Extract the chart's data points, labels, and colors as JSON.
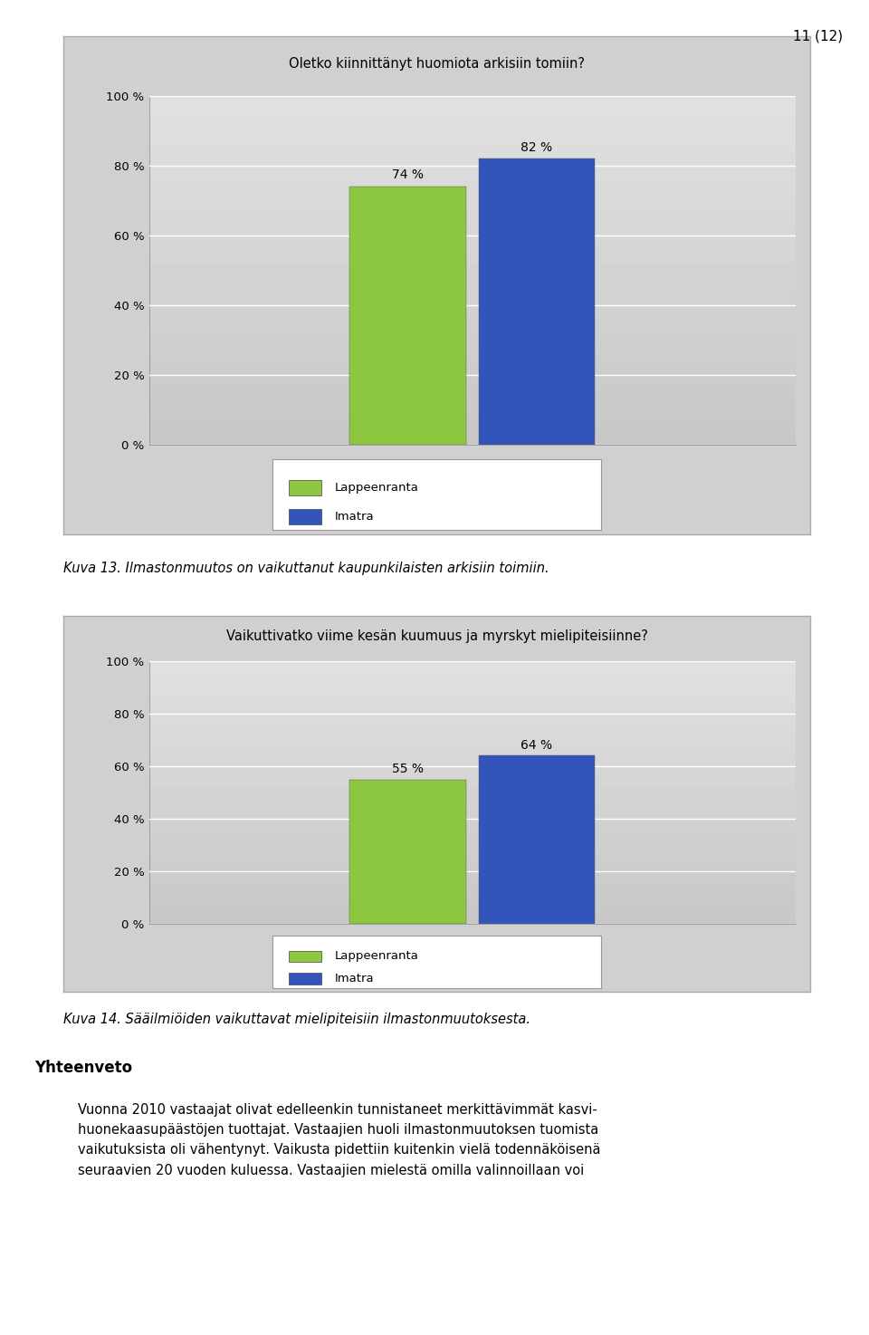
{
  "chart1": {
    "title": "Oletko kiinnittänyt huomiota arkisiin tomiin?",
    "values": [
      74,
      82
    ],
    "bar_colors": [
      "#8dc63f",
      "#3355bb"
    ],
    "bar_labels": [
      "74 %",
      "82 %"
    ],
    "yticks": [
      0,
      20,
      40,
      60,
      80,
      100
    ],
    "ytick_labels": [
      "0 %",
      "20 %",
      "40 %",
      "60 %",
      "80 %",
      "100 %"
    ]
  },
  "chart2": {
    "title": "Vaikuttivatko viime kesän kuumuus ja myrskyt mielipiteisiinne?",
    "values": [
      55,
      64
    ],
    "bar_colors": [
      "#8dc63f",
      "#3355bb"
    ],
    "bar_labels": [
      "55 %",
      "64 %"
    ],
    "yticks": [
      0,
      20,
      40,
      60,
      80,
      100
    ],
    "ytick_labels": [
      "0 %",
      "20 %",
      "40 %",
      "60 %",
      "80 %",
      "100 %"
    ]
  },
  "caption1": "Kuva 13. Ilmastonmuutos on vaikuttanut kaupunkilaisten arkisiin toimiin.",
  "caption2": "Kuva 14. Sääilmiöiden vaikuttavat mielipiteisiin ilmastonmuutoksesta.",
  "section_title": "Yhteenveto",
  "body_text": "Vuonna 2010 vastaajat olivat edelleenkin tunnistaneet merkittävimmät kasvi-\nhuonekaasupäästöjen tuottajat. Vastaajien huoli ilmastonmuutoksen tuomista\nvaikutuksista oli vähentynyt. Vaikusta pidettiin kuitenkin vielä todennäköisenä\nseuraavien 20 vuoden kuluessa. Vastaajien mielestä omilla valinnoillaan voi",
  "page_number": "11 (12)",
  "legend_labels": [
    "Lappeenranta",
    "Imatra"
  ],
  "legend_green": "#8dc63f",
  "legend_blue": "#3355bb",
  "outer_bg": "#d0d0d0",
  "plot_bg_top": "#f0f0f0",
  "plot_bg_bottom": "#c8c8c8"
}
